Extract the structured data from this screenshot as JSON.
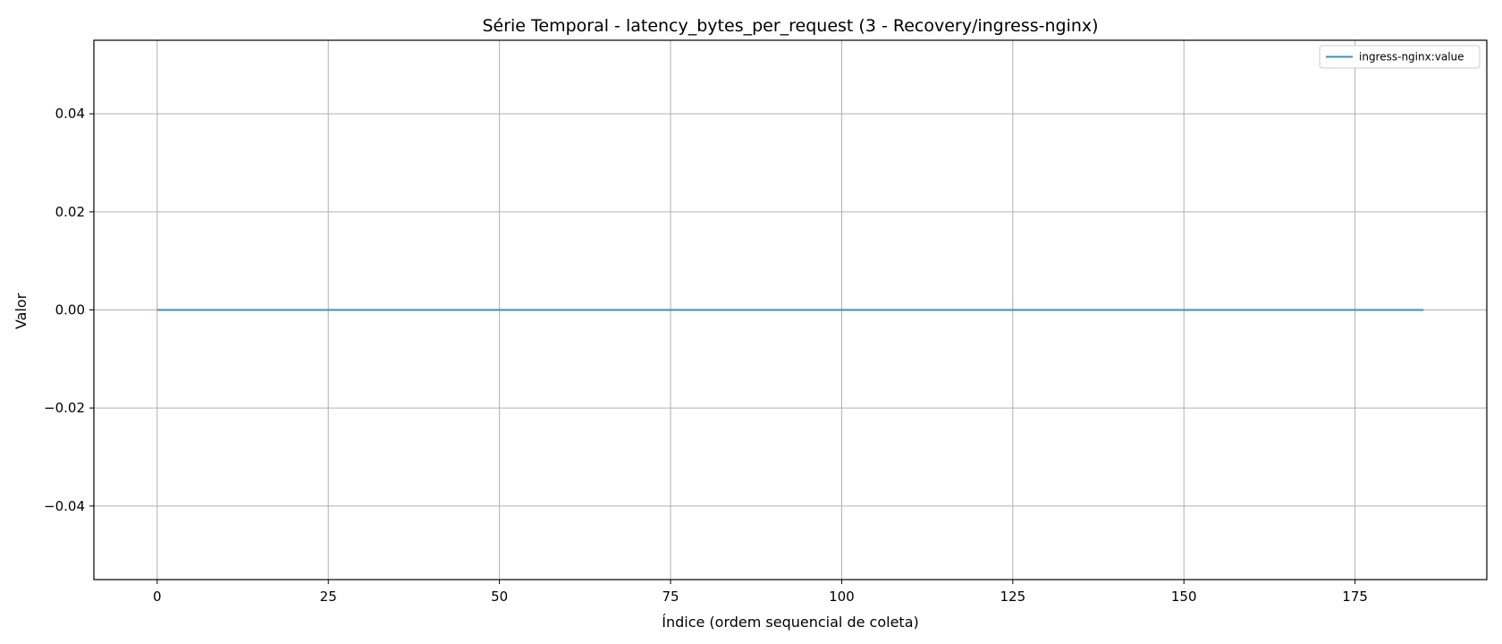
{
  "chart_data": {
    "type": "line",
    "title": "Série Temporal - latency_bytes_per_request (3 - Recovery/ingress-nginx)",
    "xlabel": "Índice (ordem sequencial de coleta)",
    "ylabel": "Valor",
    "xlim": [
      -9.25,
      194.25
    ],
    "ylim": [
      -0.055,
      0.055
    ],
    "xticks": [
      0,
      25,
      50,
      75,
      100,
      125,
      150,
      175
    ],
    "xtick_labels": [
      "0",
      "25",
      "50",
      "75",
      "100",
      "125",
      "150",
      "175"
    ],
    "yticks": [
      -0.04,
      -0.02,
      0.0,
      0.02,
      0.04
    ],
    "ytick_labels": [
      "−0.04",
      "−0.02",
      "0.00",
      "0.02",
      "0.04"
    ],
    "grid": true,
    "legend_position": "top-right",
    "series": [
      {
        "name": "ingress-nginx:value",
        "color": "#3b8fc4",
        "x_range": [
          0,
          185
        ],
        "constant_value": 0
      }
    ]
  }
}
